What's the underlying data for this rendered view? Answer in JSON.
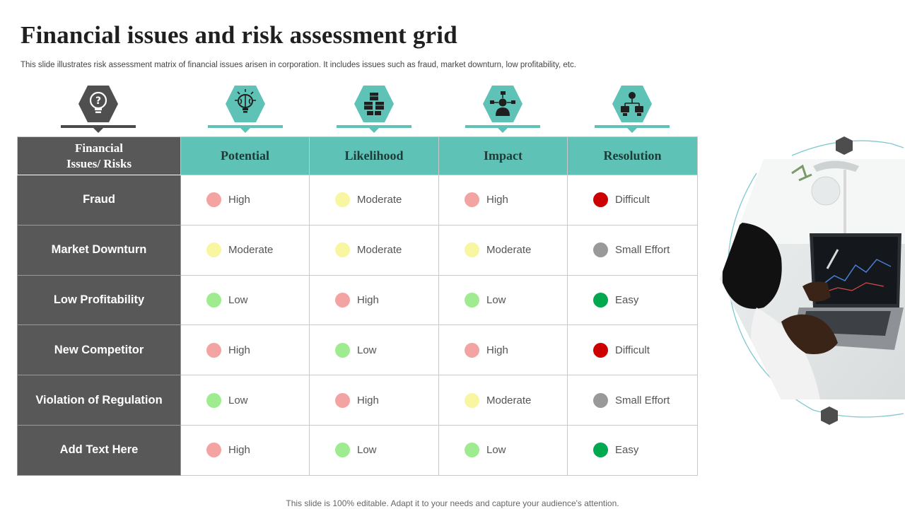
{
  "slide": {
    "title": "Financial issues and risk assessment  grid",
    "subtitle": "This slide illustrates risk assessment matrix of financial issues arisen in corporation. It includes issues such as fraud, market downturn, low profitability, etc.",
    "footer": "This slide is 100% editable. Adapt it to your needs and capture your audience's attention."
  },
  "icons": [
    "question-bulb-icon",
    "brain-bulb-icon",
    "cubes-icon",
    "businessman-network-icon",
    "org-chart-icon"
  ],
  "colors": {
    "teal": "#5ec2b6",
    "dark_gray": "#585858",
    "High": "#f4a3a3",
    "Moderate": "#f8f6a0",
    "Low": "#9fec90",
    "Difficult": "#cc0000",
    "Small Effort": "#999999",
    "Easy": "#00a84f"
  },
  "table": {
    "row_header_label_line1": "Financial",
    "row_header_label_line2": "Issues/ Risks",
    "columns": [
      "Potential",
      "Likelihood",
      "Impact",
      "Resolution"
    ],
    "rows": [
      {
        "label": "Fraud",
        "values": [
          "High",
          "Moderate",
          "High",
          "Difficult"
        ]
      },
      {
        "label": "Market Downturn",
        "values": [
          "Moderate",
          "Moderate",
          "Moderate",
          "Small Effort"
        ]
      },
      {
        "label": "Low Profitability",
        "values": [
          "Low",
          "High",
          "Low",
          "Easy"
        ]
      },
      {
        "label": "New Competitor",
        "values": [
          "High",
          "Low",
          "High",
          "Difficult"
        ]
      },
      {
        "label": "Violation of Regulation",
        "values": [
          "Low",
          "High",
          "Moderate",
          "Small Effort"
        ]
      },
      {
        "label": "Add Text Here",
        "values": [
          "High",
          "Low",
          "Low",
          "Easy"
        ]
      }
    ]
  }
}
